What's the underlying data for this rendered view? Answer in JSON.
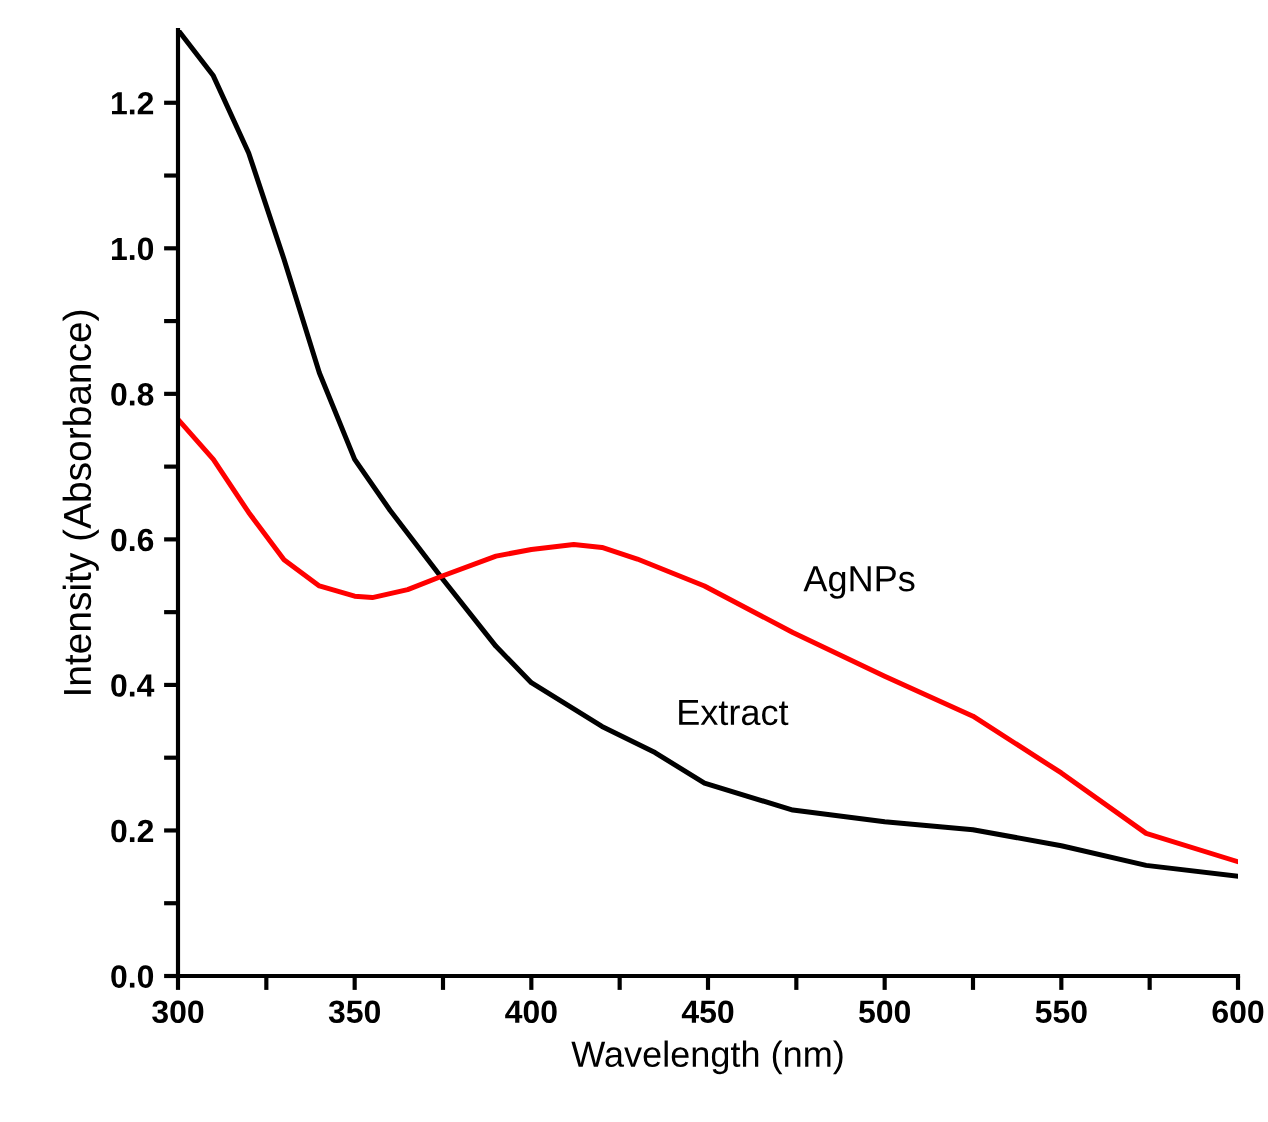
{
  "chart_data": {
    "type": "line",
    "xlabel": "Wavelength (nm)",
    "ylabel": "Intensity (Absorbance)",
    "xlim": [
      300,
      600
    ],
    "ylim": [
      0,
      1.3
    ],
    "xticks": [
      300,
      {
        "value": 325,
        "label": null
      },
      350,
      {
        "value": 375,
        "label": null
      },
      400,
      {
        "value": 425,
        "label": null
      },
      450,
      {
        "value": 475,
        "label": null
      },
      500,
      {
        "value": 525,
        "label": null
      },
      550,
      {
        "value": 575,
        "label": null
      },
      600
    ],
    "yticks": [
      {
        "value": 0,
        "label": "0.0"
      },
      {
        "value": 0.1,
        "label": null
      },
      0.2,
      {
        "value": 0.3,
        "label": null
      },
      0.4,
      {
        "value": 0.5,
        "label": null
      },
      0.6,
      {
        "value": 0.7,
        "label": null
      },
      0.8,
      {
        "value": 0.9,
        "label": null
      },
      {
        "value": 1.0,
        "label": "1.0"
      },
      {
        "value": 1.1,
        "label": null
      },
      1.2
    ],
    "grid": false,
    "legend": false,
    "marker": "none",
    "line_style": "solid",
    "series": [
      {
        "name": "Extract",
        "color": "#000000",
        "x": [
          300,
          310,
          320,
          330,
          340,
          350,
          360,
          375,
          390,
          400,
          420,
          435,
          449,
          474,
          500,
          525,
          550,
          574,
          600
        ],
        "values": [
          1.3,
          1.237,
          1.131,
          0.985,
          0.829,
          0.71,
          0.64,
          0.545,
          0.453,
          0.403,
          0.343,
          0.307,
          0.265,
          0.228,
          0.212,
          0.201,
          0.179,
          0.152,
          0.137
        ]
      },
      {
        "name": "AgNPs",
        "color": "#ff0000",
        "x": [
          300,
          310,
          320,
          330,
          340,
          350,
          355,
          365,
          375,
          390,
          400,
          412,
          420,
          430,
          449,
          474,
          500,
          525,
          550,
          574,
          600
        ],
        "values": [
          0.765,
          0.71,
          0.637,
          0.572,
          0.536,
          0.522,
          0.52,
          0.531,
          0.55,
          0.577,
          0.586,
          0.593,
          0.589,
          0.573,
          0.536,
          0.472,
          0.412,
          0.357,
          0.279,
          0.196,
          0.157
        ]
      }
    ]
  }
}
